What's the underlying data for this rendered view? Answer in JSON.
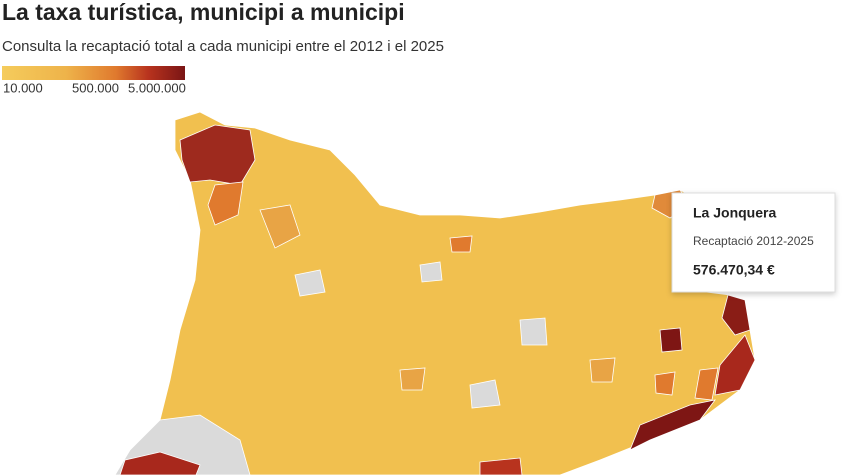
{
  "header": {
    "title": "La taxa turística, municipi a municipi",
    "subtitle": "Consulta la recaptació total a cada municipi entre el 2012 i el 2025"
  },
  "legend": {
    "labels": [
      "10.000",
      "500.000",
      "5.000.000"
    ]
  },
  "tooltip": {
    "name": "La Jonquera",
    "label": "Recaptació 2012-2025",
    "value": "576.470,34 €"
  }
}
